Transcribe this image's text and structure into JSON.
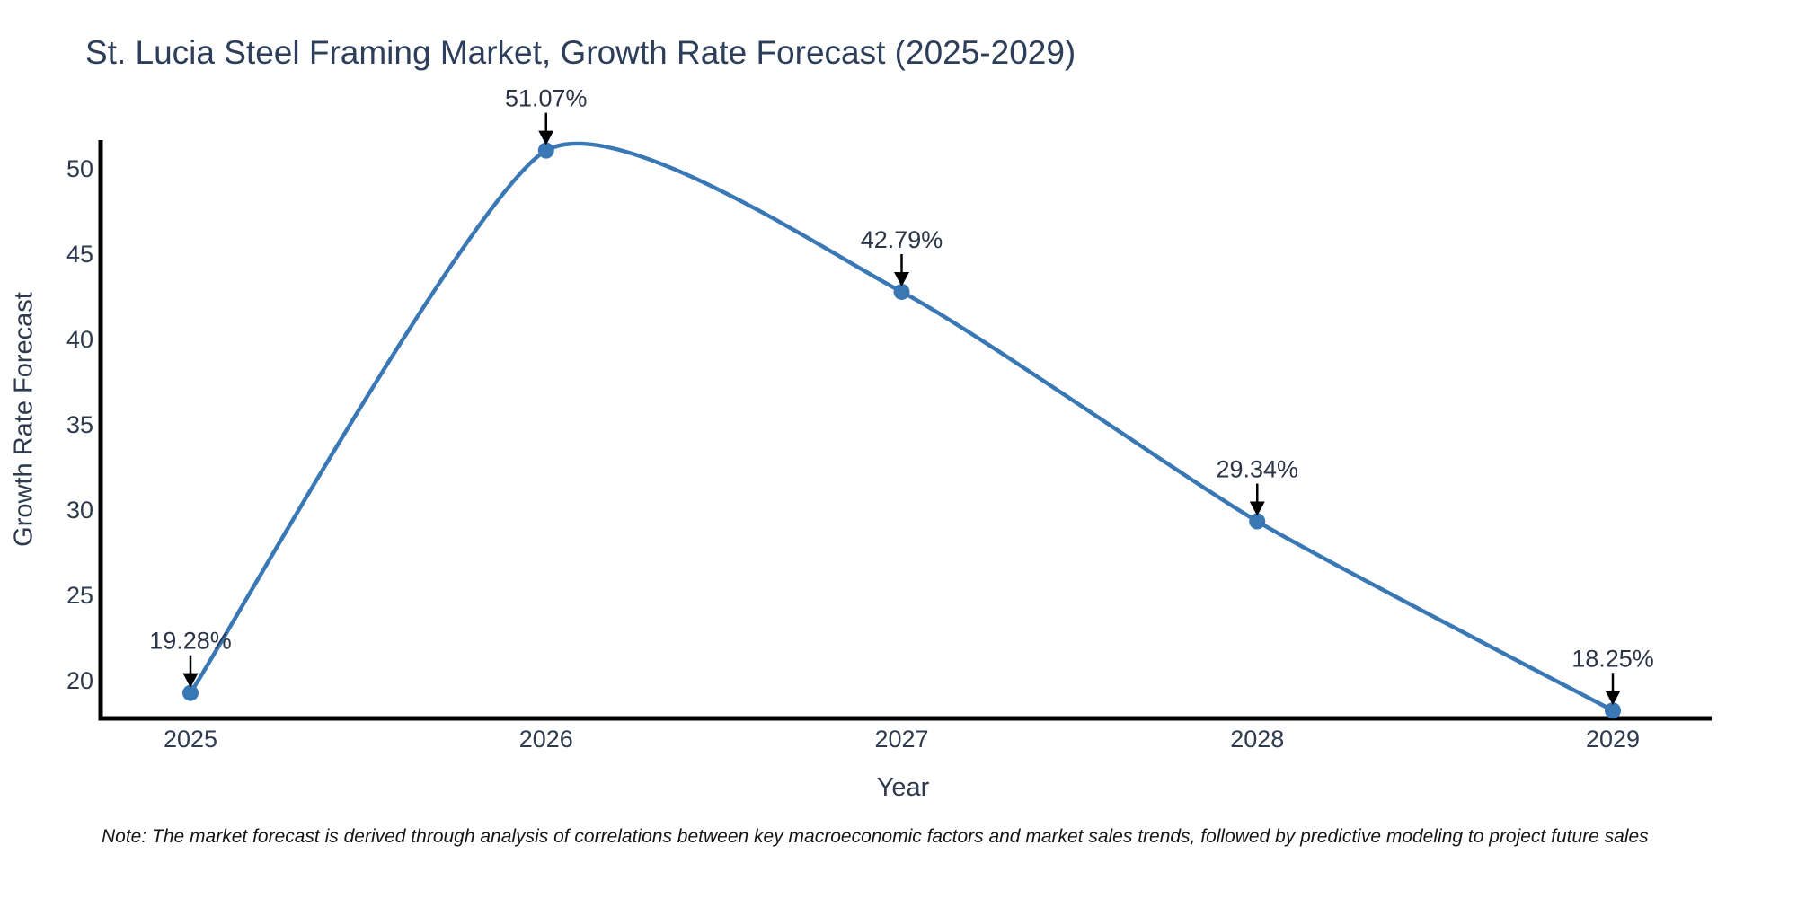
{
  "title": "St. Lucia Steel Framing Market, Growth Rate Forecast (2025-2029)",
  "note": "Note: The market forecast is derived through analysis of correlations between key macroeconomic factors and market sales trends, followed by predictive modeling to project future sales",
  "chart_data": {
    "type": "line",
    "line_shape": "spline",
    "title": "St. Lucia Steel Framing Market, Growth Rate Forecast (2025-2029)",
    "xlabel": "Year",
    "ylabel": "Growth Rate Forecast",
    "categories": [
      "2025",
      "2026",
      "2027",
      "2028",
      "2029"
    ],
    "values": [
      19.28,
      51.07,
      42.79,
      29.34,
      18.25
    ],
    "point_labels": [
      "19.28%",
      "51.07%",
      "42.79%",
      "29.34%",
      "18.25%"
    ],
    "yticks": [
      "20",
      "25",
      "30",
      "35",
      "40",
      "45",
      "50"
    ],
    "ylim": [
      17.8,
      51.7
    ],
    "grid": false,
    "legend": false,
    "colors": {
      "line": "#3a78b5",
      "marker": "#3a78b5",
      "annotation_arrow": "#000000",
      "axis_spine": "#000000",
      "text": "#2e3a4e",
      "title_text": "#2c3e5a",
      "note_text": "#151515",
      "background": "#ffffff"
    }
  }
}
